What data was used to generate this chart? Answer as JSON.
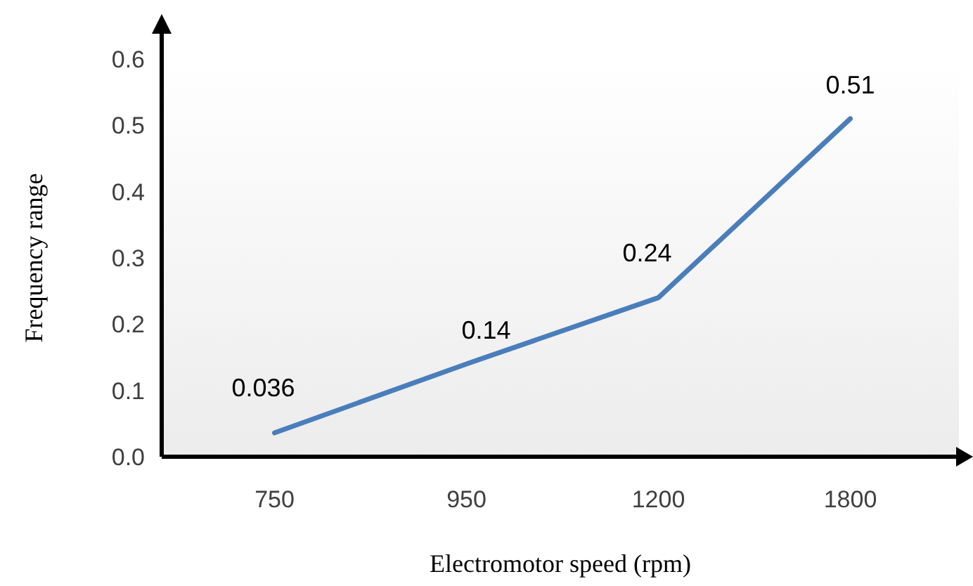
{
  "chart_data": {
    "type": "line",
    "xlabel": "Electromotor speed (rpm)",
    "ylabel": "Frequency range",
    "categories": [
      "750",
      "950",
      "1200",
      "1800"
    ],
    "series": [
      {
        "color": "#4a7ebb",
        "values": [
          0.036,
          0.14,
          0.24,
          0.51
        ]
      }
    ],
    "ylim": [
      0,
      0.6
    ],
    "yticks": [
      {
        "value": 0,
        "label": "0.0"
      },
      0.1,
      0.2,
      0.3,
      0.4,
      0.5,
      0.6
    ],
    "data_labels": true,
    "grid": false,
    "marker": "none",
    "line_style": "solid"
  }
}
